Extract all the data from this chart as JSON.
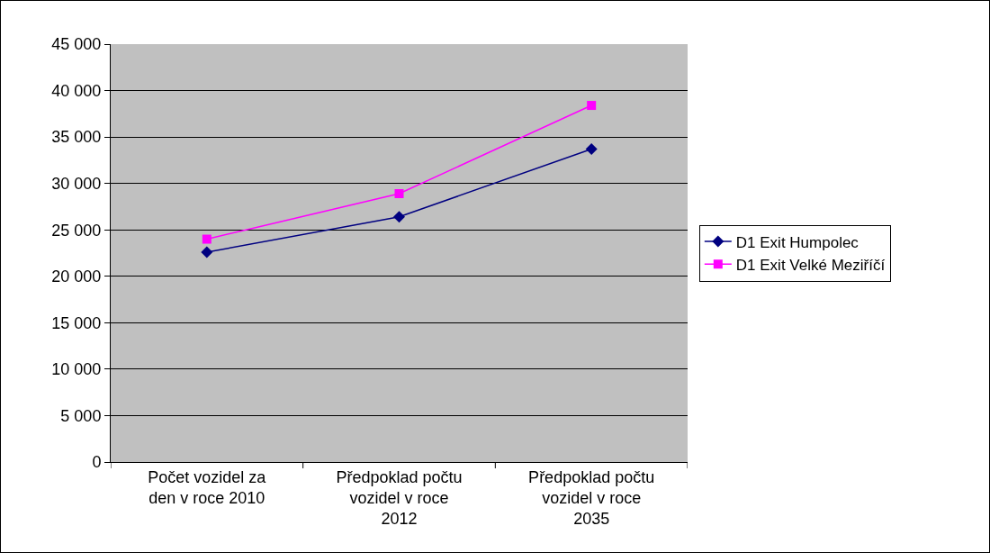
{
  "chart_data": {
    "type": "line",
    "categories": [
      "Počet vozidel za den v roce 2010",
      "Předpoklad počtu vozidel v roce 2012",
      "Předpoklad počtu vozidel v roce 2035"
    ],
    "series": [
      {
        "name": "D1 Exit Humpolec",
        "color": "#000080",
        "marker": "diamond",
        "values": [
          22600,
          26400,
          33700
        ]
      },
      {
        "name": "D1 Exit Velké Meziříčí",
        "color": "#ff00ff",
        "marker": "square",
        "values": [
          24000,
          28900,
          38400
        ]
      }
    ],
    "ylim": [
      0,
      45000
    ],
    "yticks": [
      {
        "value": 0,
        "label": "0"
      },
      {
        "value": 5000,
        "label": "5 000"
      },
      {
        "value": 10000,
        "label": "10 000"
      },
      {
        "value": 15000,
        "label": "15 000"
      },
      {
        "value": 20000,
        "label": "20 000"
      },
      {
        "value": 25000,
        "label": "25 000"
      },
      {
        "value": 30000,
        "label": "30 000"
      },
      {
        "value": 35000,
        "label": "35 000"
      },
      {
        "value": 40000,
        "label": "40 000"
      },
      {
        "value": 45000,
        "label": "45 000"
      }
    ],
    "grid": "y",
    "legend": "right",
    "line_style": "solid"
  }
}
